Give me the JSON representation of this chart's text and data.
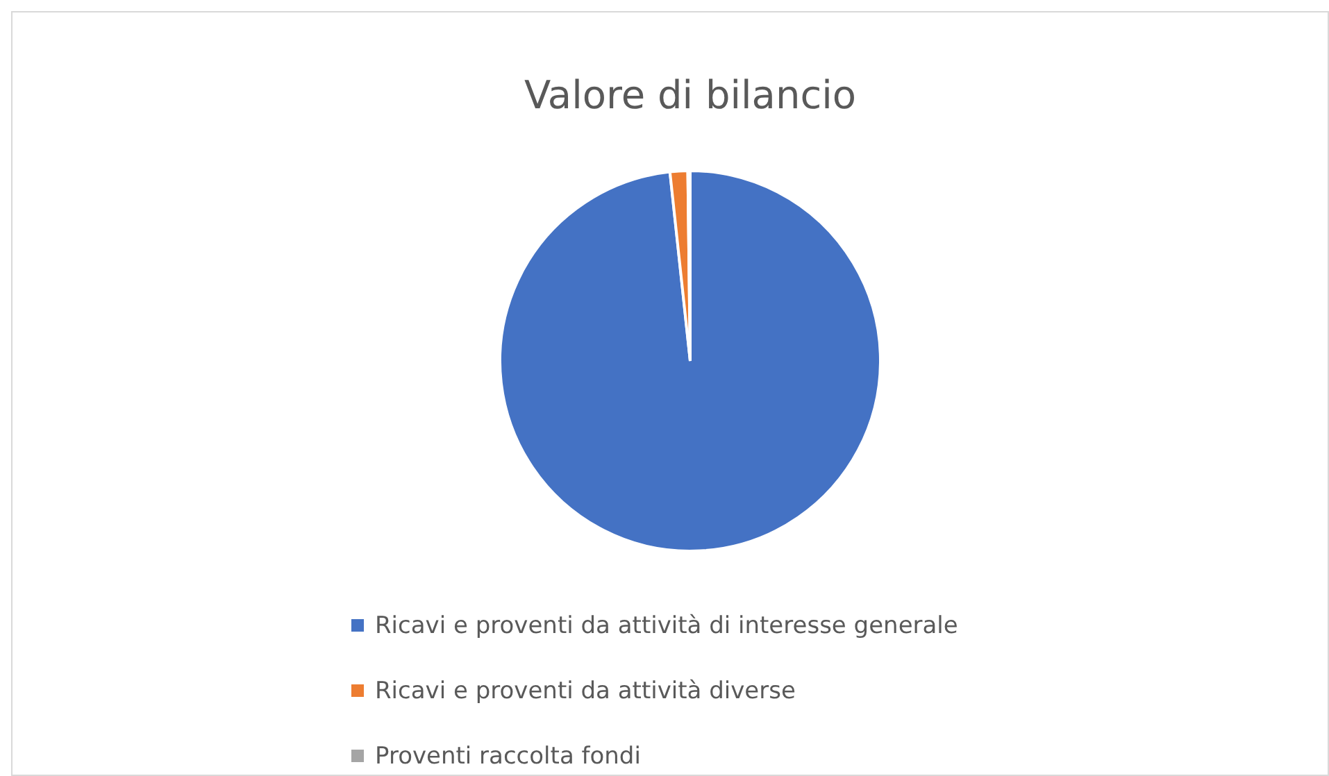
{
  "chart_data": {
    "type": "pie",
    "title": "Valore di bilancio",
    "categories": [
      "Ricavi e proventi da attività di interesse generale",
      "Ricavi e proventi da attività diverse",
      "Proventi raccolta fondi"
    ],
    "values": [
      98.3,
      1.5,
      0.2
    ],
    "colors": [
      "#4472c4",
      "#ed7d31",
      "#a5a5a5"
    ],
    "legend": "bottom"
  }
}
